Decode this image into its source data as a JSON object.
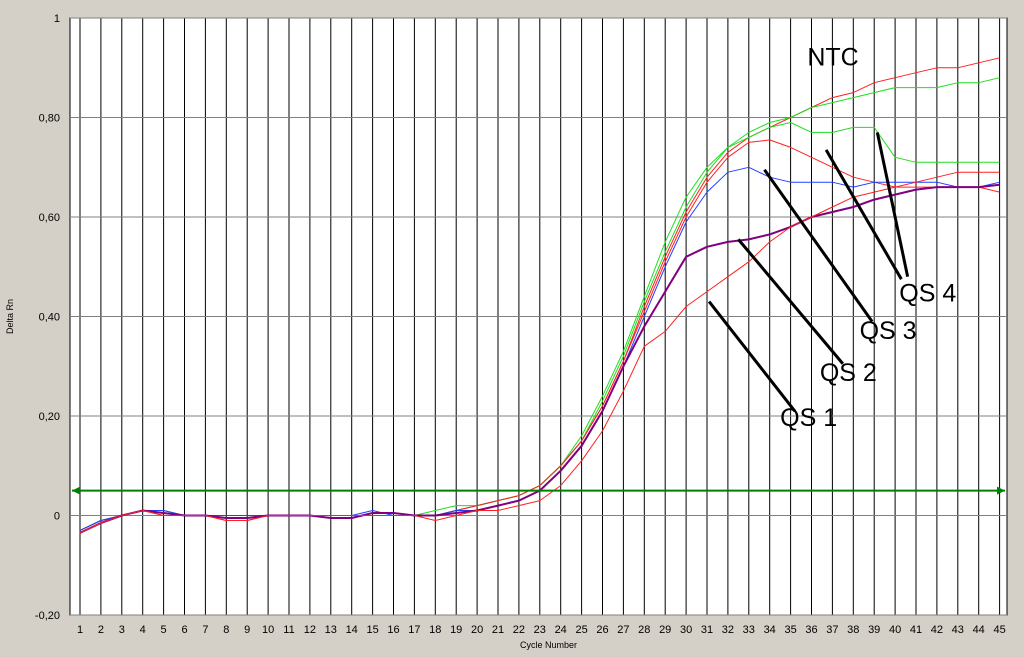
{
  "chart_data": {
    "type": "line",
    "xlabel": "Cycle Number",
    "ylabel": "Delta Rn",
    "xlim": [
      1,
      45
    ],
    "ylim": [
      -0.2,
      1.0
    ],
    "y_ticks": [
      {
        "value": 1.0,
        "label": "1"
      },
      {
        "value": 0.8,
        "label": "0,80"
      },
      {
        "value": 0.6,
        "label": "0,60"
      },
      {
        "value": 0.4,
        "label": "0,40"
      },
      {
        "value": 0.2,
        "label": "0,20"
      },
      {
        "value": 0.0,
        "label": "0"
      },
      {
        "value": -0.2,
        "label": "-0,20"
      }
    ],
    "x_ticks": [
      "1",
      "2",
      "3",
      "4",
      "5",
      "6",
      "7",
      "8",
      "9",
      "10",
      "11",
      "12",
      "13",
      "14",
      "15",
      "16",
      "17",
      "18",
      "19",
      "20",
      "21",
      "22",
      "23",
      "24",
      "25",
      "26",
      "27",
      "28",
      "29",
      "30",
      "31",
      "32",
      "33",
      "34",
      "35",
      "36",
      "37",
      "38",
      "39",
      "40",
      "41",
      "42",
      "43",
      "44",
      "45"
    ],
    "grid": true,
    "threshold": {
      "value": 0.05,
      "color": "#008000"
    },
    "series": [
      {
        "color": "#ff2020",
        "width": 1,
        "values": [
          -0.03,
          -0.01,
          0.0,
          0.01,
          0.01,
          0.0,
          0.0,
          -0.01,
          -0.01,
          0.0,
          0.0,
          0.0,
          0.0,
          0.0,
          0.0,
          0.0,
          0.0,
          0.0,
          0.01,
          0.02,
          0.03,
          0.04,
          0.06,
          0.1,
          0.15,
          0.22,
          0.31,
          0.42,
          0.52,
          0.61,
          0.68,
          0.73,
          0.76,
          0.78,
          0.8,
          0.82,
          0.84,
          0.85,
          0.87,
          0.88,
          0.89,
          0.9,
          0.9,
          0.91,
          0.92
        ]
      },
      {
        "color": "#20dd20",
        "width": 1,
        "values": [
          -0.03,
          -0.01,
          0.0,
          0.01,
          0.01,
          0.0,
          0.0,
          0.0,
          0.0,
          0.0,
          0.0,
          0.0,
          0.0,
          0.0,
          0.0,
          0.0,
          0.0,
          0.01,
          0.02,
          0.02,
          0.03,
          0.04,
          0.06,
          0.1,
          0.16,
          0.24,
          0.33,
          0.44,
          0.55,
          0.64,
          0.7,
          0.74,
          0.77,
          0.79,
          0.8,
          0.82,
          0.83,
          0.84,
          0.85,
          0.86,
          0.86,
          0.86,
          0.87,
          0.87,
          0.88
        ]
      },
      {
        "color": "#20dd20",
        "width": 1,
        "values": [
          -0.03,
          -0.01,
          0.0,
          0.01,
          0.0,
          0.0,
          0.0,
          0.0,
          0.0,
          0.0,
          0.0,
          0.0,
          0.0,
          0.0,
          0.0,
          0.0,
          0.0,
          0.0,
          0.01,
          0.02,
          0.03,
          0.04,
          0.06,
          0.1,
          0.15,
          0.23,
          0.32,
          0.43,
          0.53,
          0.62,
          0.69,
          0.74,
          0.76,
          0.78,
          0.79,
          0.77,
          0.77,
          0.78,
          0.78,
          0.72,
          0.71,
          0.71,
          0.71,
          0.71,
          0.71
        ]
      },
      {
        "color": "#ff2020",
        "width": 1,
        "values": [
          -0.03,
          -0.01,
          0.0,
          0.01,
          0.0,
          0.0,
          0.0,
          -0.01,
          -0.01,
          0.0,
          0.0,
          0.0,
          0.0,
          0.0,
          0.0,
          0.0,
          0.0,
          0.0,
          0.01,
          0.02,
          0.03,
          0.04,
          0.06,
          0.1,
          0.15,
          0.22,
          0.31,
          0.41,
          0.51,
          0.6,
          0.67,
          0.72,
          0.75,
          0.755,
          0.74,
          0.72,
          0.7,
          0.68,
          0.67,
          0.66,
          0.66,
          0.66,
          0.66,
          0.66,
          0.65
        ]
      },
      {
        "color": "#2040ff",
        "width": 1,
        "values": [
          -0.03,
          -0.01,
          0.0,
          0.01,
          0.01,
          0.0,
          0.0,
          0.0,
          0.0,
          0.0,
          0.0,
          0.0,
          0.0,
          0.0,
          0.01,
          0.0,
          0.0,
          0.0,
          0.01,
          0.01,
          0.02,
          0.03,
          0.05,
          0.09,
          0.14,
          0.21,
          0.3,
          0.4,
          0.5,
          0.59,
          0.65,
          0.69,
          0.7,
          0.68,
          0.67,
          0.67,
          0.67,
          0.66,
          0.67,
          0.67,
          0.67,
          0.67,
          0.66,
          0.66,
          0.67
        ]
      },
      {
        "color": "#800080",
        "width": 2,
        "values": [
          -0.035,
          -0.015,
          0.0,
          0.01,
          0.005,
          0.0,
          0.0,
          -0.005,
          -0.005,
          0.0,
          0.0,
          0.0,
          -0.005,
          -0.005,
          0.005,
          0.005,
          0.0,
          0.0,
          0.005,
          0.01,
          0.02,
          0.03,
          0.05,
          0.09,
          0.14,
          0.21,
          0.3,
          0.38,
          0.45,
          0.52,
          0.54,
          0.55,
          0.555,
          0.565,
          0.58,
          0.6,
          0.61,
          0.62,
          0.635,
          0.645,
          0.655,
          0.66,
          0.66,
          0.66,
          0.665
        ]
      },
      {
        "color": "#ff2020",
        "width": 1,
        "values": [
          -0.035,
          -0.015,
          0.0,
          0.01,
          0.0,
          0.0,
          0.0,
          -0.01,
          -0.01,
          0.0,
          0.0,
          0.0,
          0.0,
          0.0,
          0.0,
          0.0,
          0.0,
          -0.01,
          0.0,
          0.01,
          0.01,
          0.02,
          0.03,
          0.06,
          0.11,
          0.17,
          0.25,
          0.34,
          0.37,
          0.42,
          0.45,
          0.48,
          0.51,
          0.55,
          0.58,
          0.6,
          0.62,
          0.64,
          0.65,
          0.66,
          0.67,
          0.68,
          0.69,
          0.69,
          0.69
        ]
      }
    ],
    "annotations": [
      {
        "label": "NTC",
        "tx": 35.8,
        "ty": 0.905,
        "line": null
      },
      {
        "label": "QS 4",
        "tx": 40.2,
        "ty": 0.43,
        "line": [
          39.15,
          0.77,
          40.6,
          0.48
        ]
      },
      {
        "label": "QS 3",
        "tx": 38.3,
        "ty": 0.355,
        "line": [
          36.7,
          0.735,
          40.3,
          0.475
        ]
      },
      {
        "label": "QS 2",
        "tx": 36.4,
        "ty": 0.27,
        "line": [
          33.75,
          0.695,
          38.9,
          0.39
        ]
      },
      {
        "label": "QS 1",
        "tx": 34.5,
        "ty": 0.18,
        "line": [
          32.5,
          0.555,
          37.5,
          0.305
        ]
      },
      {
        "label": "",
        "tx": null,
        "ty": null,
        "line": [
          31.1,
          0.43,
          35.2,
          0.21
        ]
      }
    ]
  }
}
